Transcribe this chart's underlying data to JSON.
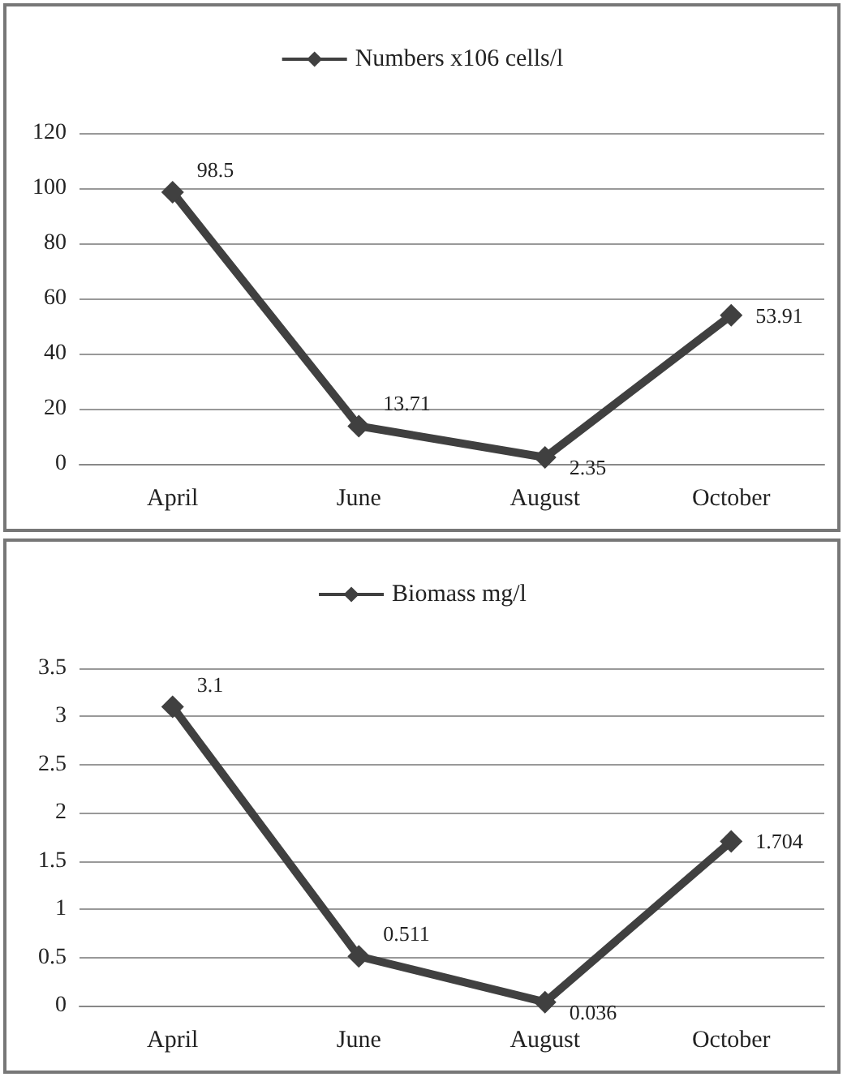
{
  "chart_data": [
    {
      "type": "line",
      "categories": [
        "April",
        "June",
        "August",
        "October"
      ],
      "series": [
        {
          "name": "Numbers x106 cells/l",
          "color": "#404040",
          "values": [
            98.5,
            13.71,
            2.35,
            53.91
          ]
        }
      ],
      "ylim": [
        0,
        120
      ],
      "yticks": [
        0,
        20,
        40,
        60,
        80,
        100,
        120
      ],
      "grid": "y",
      "legend": "top",
      "marker": "diamond",
      "data_labels": true
    },
    {
      "type": "line",
      "categories": [
        "April",
        "June",
        "August",
        "October"
      ],
      "series": [
        {
          "name": "Biomass mg/l",
          "color": "#404040",
          "values": [
            3.1,
            0.511,
            0.036,
            1.704
          ]
        }
      ],
      "ylim": [
        0,
        3.5
      ],
      "yticks": [
        0,
        0.5,
        1,
        1.5,
        2,
        2.5,
        3,
        3.5
      ],
      "grid": "y",
      "legend": "top",
      "marker": "diamond",
      "data_labels": true
    }
  ]
}
